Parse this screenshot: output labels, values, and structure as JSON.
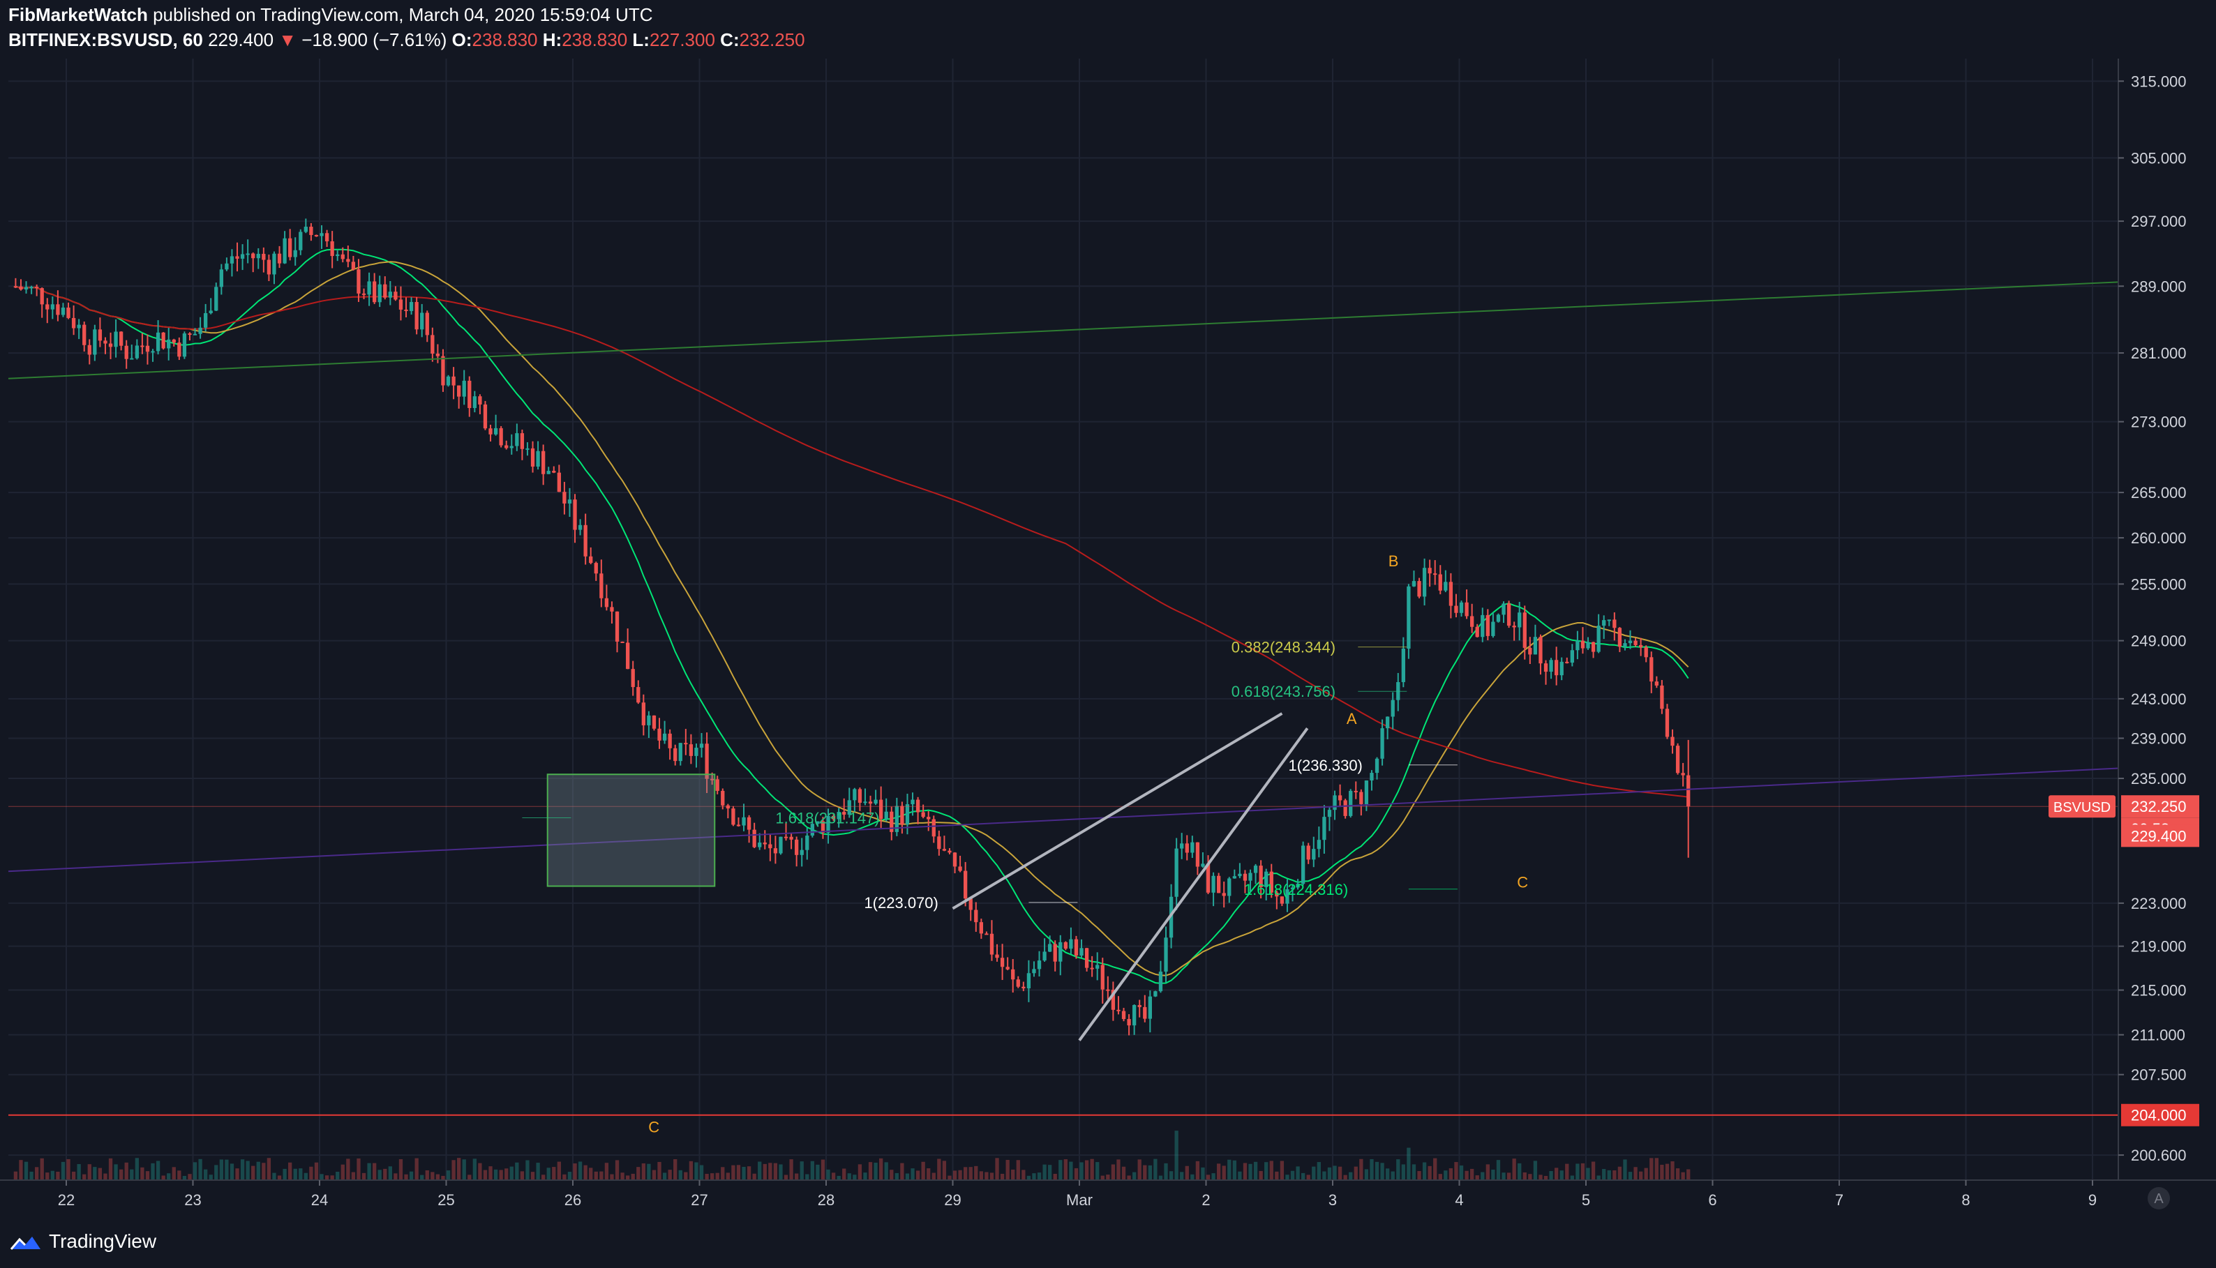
{
  "header": {
    "author": "FibMarketWatch",
    "published_text": "published on TradingView.com, March 04, 2020 15:59:04 UTC",
    "symbol": "BITFINEX:BSVUSD, 60",
    "last": "229.400",
    "change_arrow": "▼",
    "change": "−18.900 (−7.61%)",
    "o_label": "O:",
    "o_value": "238.830",
    "h_label": "H:",
    "h_value": "238.830",
    "l_label": "L:",
    "l_value": "227.300",
    "c_label": "C:",
    "c_value": "232.250"
  },
  "footer": {
    "brand": "TradingView"
  },
  "chart_data": {
    "type": "candlestick",
    "symbol": "BSVUSD",
    "timeframe": "60",
    "x_ticks": [
      "22",
      "23",
      "24",
      "25",
      "26",
      "27",
      "28",
      "29",
      "Mar",
      "2",
      "3",
      "4",
      "5",
      "6",
      "7",
      "8",
      "9"
    ],
    "y_ticks": [
      "315.000",
      "305.000",
      "297.000",
      "289.000",
      "281.000",
      "273.000",
      "265.000",
      "260.000",
      "255.000",
      "249.000",
      "243.000",
      "239.000",
      "235.000",
      "223.000",
      "219.000",
      "215.000",
      "211.000",
      "207.500",
      "200.600"
    ],
    "y_range": [
      198.5,
      318
    ],
    "log_scale": true,
    "price_labels": {
      "symbol_tag": "BSVUSD",
      "current": "232.250",
      "countdown": "00:58",
      "last": "229.400",
      "level": "204.000"
    },
    "fib_labels": [
      {
        "text": "1.618(231.147)",
        "price": 231.147
      },
      {
        "text": "1(223.070)",
        "price": 223.07
      },
      {
        "text": "0.382(248.344)",
        "price": 248.344
      },
      {
        "text": "0.618(243.756)",
        "price": 243.756
      },
      {
        "text": "1(236.330)",
        "price": 236.33
      },
      {
        "text": "1.618(224.316)",
        "price": 224.316
      }
    ],
    "wave_labels": [
      "C",
      "A",
      "B",
      "C"
    ],
    "horizontal_level": 204.0,
    "target_box": {
      "price_top": 235.4,
      "price_bottom": 224.6,
      "x_start": 3.8,
      "x_end": 5.12
    },
    "close_path": [
      [
        -0.4,
        289
      ],
      [
        -0.2,
        288
      ],
      [
        0.0,
        286
      ],
      [
        0.2,
        282
      ],
      [
        0.3,
        283
      ],
      [
        0.5,
        281
      ],
      [
        0.7,
        283
      ],
      [
        0.9,
        282
      ],
      [
        1.0,
        283
      ],
      [
        1.1,
        285
      ],
      [
        1.2,
        291
      ],
      [
        1.4,
        293
      ],
      [
        1.6,
        292
      ],
      [
        1.8,
        294
      ],
      [
        2.0,
        296
      ],
      [
        2.1,
        294
      ],
      [
        2.2,
        291
      ],
      [
        2.4,
        288
      ],
      [
        2.6,
        287
      ],
      [
        2.8,
        285
      ],
      [
        3.0,
        278
      ],
      [
        3.2,
        276
      ],
      [
        3.4,
        272
      ],
      [
        3.6,
        270
      ],
      [
        3.8,
        268
      ],
      [
        4.0,
        262
      ],
      [
        4.2,
        256
      ],
      [
        4.4,
        248
      ],
      [
        4.6,
        240
      ],
      [
        4.8,
        237
      ],
      [
        5.0,
        238
      ],
      [
        5.1,
        235
      ],
      [
        5.3,
        231
      ],
      [
        5.5,
        228
      ],
      [
        5.7,
        228
      ],
      [
        5.9,
        230
      ],
      [
        6.1,
        232
      ],
      [
        6.3,
        233
      ],
      [
        6.5,
        231
      ],
      [
        6.7,
        232
      ],
      [
        6.9,
        228
      ],
      [
        7.1,
        224
      ],
      [
        7.3,
        219
      ],
      [
        7.5,
        215
      ],
      [
        7.7,
        218
      ],
      [
        7.9,
        219
      ],
      [
        8.1,
        217
      ],
      [
        8.3,
        214
      ],
      [
        8.5,
        212
      ],
      [
        8.6,
        214
      ],
      [
        8.8,
        230
      ],
      [
        9.0,
        225
      ],
      [
        9.2,
        224
      ],
      [
        9.4,
        226
      ],
      [
        9.6,
        223
      ],
      [
        9.8,
        228
      ],
      [
        10.0,
        232
      ],
      [
        10.2,
        233
      ],
      [
        10.3,
        235
      ],
      [
        10.5,
        243
      ],
      [
        10.6,
        254
      ],
      [
        10.8,
        256
      ],
      [
        11.0,
        253
      ],
      [
        11.2,
        250
      ],
      [
        11.4,
        252
      ],
      [
        11.6,
        248
      ],
      [
        11.8,
        246
      ],
      [
        12.0,
        249
      ],
      [
        12.2,
        250
      ],
      [
        12.4,
        249
      ],
      [
        12.6,
        242
      ],
      [
        12.7,
        238
      ],
      [
        12.8,
        232.25
      ]
    ]
  }
}
